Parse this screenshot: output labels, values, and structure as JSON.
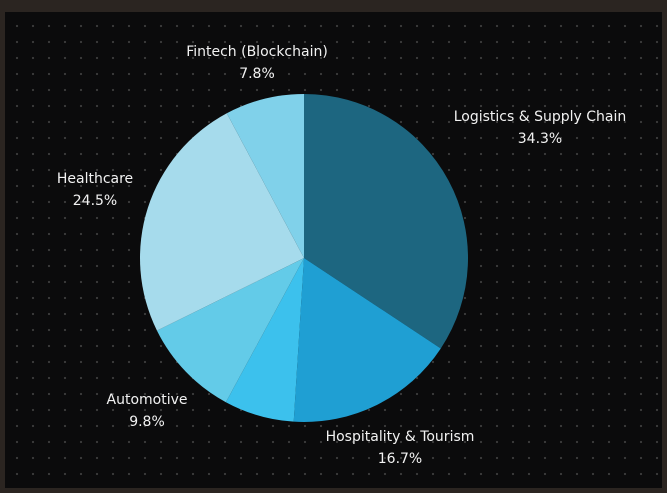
{
  "chart_data": {
    "type": "pie",
    "categories": [
      "Logistics & Supply Chain",
      "Hospitality & Tourism",
      null,
      "Automotive",
      "Healthcare",
      "Fintech (Blockchain)"
    ],
    "values": [
      34.3,
      16.7,
      6.9,
      9.8,
      24.5,
      7.8
    ],
    "value_labels": [
      "34.3%",
      "16.7%",
      null,
      "9.8%",
      "24.5%",
      "7.8%"
    ],
    "colors": [
      "#1d6680",
      "#1f9fd3",
      "#3cc1ed",
      "#63cbe8",
      "#a6dbec",
      "#80d1ea"
    ]
  }
}
